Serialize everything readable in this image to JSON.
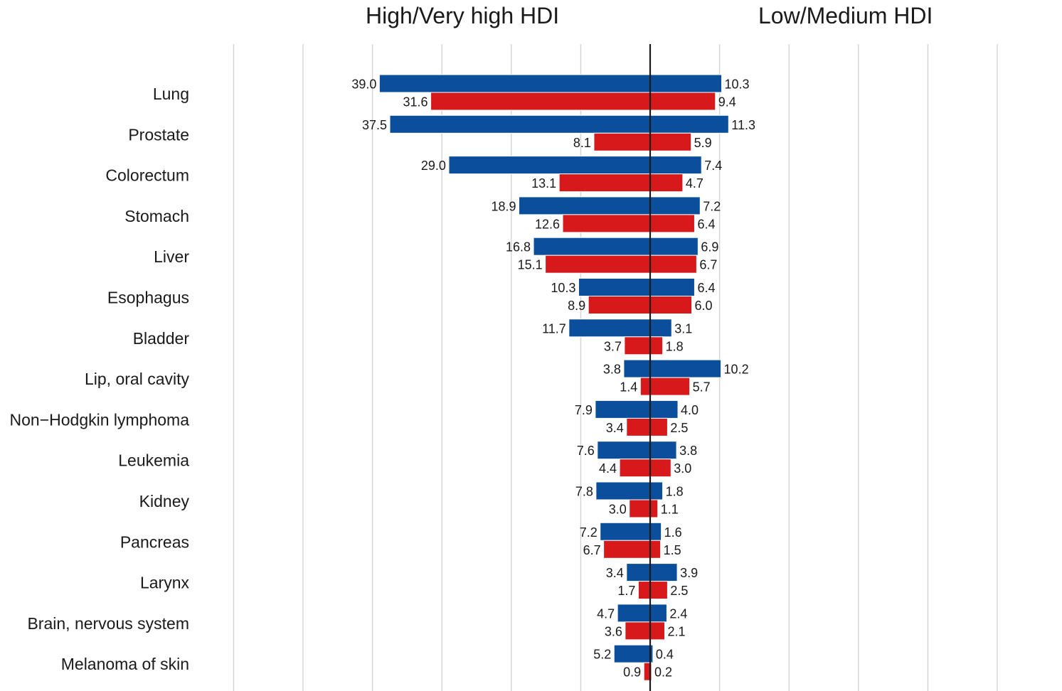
{
  "chart_data": {
    "type": "bar",
    "orientation": "horizontal-back-to-back",
    "panels": [
      "High/Very high HDI",
      "Low/Medium HDI"
    ],
    "categories": [
      "Lung",
      "Prostate",
      "Colorectum",
      "Stomach",
      "Liver",
      "Esophagus",
      "Bladder",
      "Lip, oral cavity",
      "Non−Hodgkin lymphoma",
      "Leukemia",
      "Kidney",
      "Pancreas",
      "Larynx",
      "Brain, nervous system",
      "Melanoma of skin"
    ],
    "series": [
      {
        "color": "#0b4f9c",
        "high_hdi": [
          "39.0",
          "37.5",
          "29.0",
          "18.9",
          "16.8",
          "10.3",
          "11.7",
          "3.8",
          "7.9",
          "7.6",
          "7.8",
          "7.2",
          "3.4",
          "4.7",
          "5.2"
        ],
        "low_hdi": [
          "10.3",
          "11.3",
          "7.4",
          "7.2",
          "6.9",
          "6.4",
          "3.1",
          "10.2",
          "4.0",
          "3.8",
          "1.8",
          "1.6",
          "3.9",
          "2.4",
          "0.4"
        ]
      },
      {
        "color": "#d7191c",
        "high_hdi": [
          "31.6",
          "8.1",
          "13.1",
          "12.6",
          "15.1",
          "8.9",
          "3.7",
          "1.4",
          "3.4",
          "4.4",
          "3.0",
          "6.7",
          "1.7",
          "3.6",
          "0.9"
        ],
        "low_hdi": [
          "9.4",
          "5.9",
          "4.7",
          "6.4",
          "6.7",
          "6.0",
          "1.8",
          "5.7",
          "2.5",
          "3.0",
          "1.1",
          "1.5",
          "2.5",
          "2.1",
          "0.2"
        ]
      }
    ],
    "xlim": [
      -60,
      50
    ],
    "grid": true,
    "colors": {
      "divider": "#1a1a1a",
      "grid": "#d4d4d4",
      "text": "#1a1a1a"
    }
  }
}
